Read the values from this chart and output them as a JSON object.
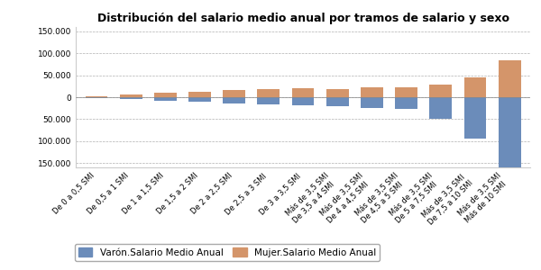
{
  "title": "Distribución del salario medio anual por tramos de salario y sexo",
  "categories": [
    "De 0 a 0,5 SMI",
    "De 0,5 a 1 SMI",
    "De 1 a 1,5 SMI",
    "De 1,5 a 2 SMI",
    "De 2 a 2,5 SMI",
    "De 2,5 a 3 SMI",
    "De 3 a 3,5 SMI",
    "Más de 3,5 SMI\nDe 3,5 a 4 SMI",
    "Más de 3,5 SMI\nDe 4 a 4,5 SMI",
    "Más de 3,5 SMI\nDe 4,5 a 5 SMI",
    "Más de 3,5 SMI\nDe 5 a 7,5 SMI",
    "Más de 3,5 SMI\nDe 7,5 a 10 SMI",
    "Más de 3,5 SMI\nMás de 10 SMI"
  ],
  "varon": [
    -1500,
    -5000,
    -8000,
    -11000,
    -14000,
    -17000,
    -19000,
    -21000,
    -24000,
    -26000,
    -50000,
    -95000,
    -175000
  ],
  "mujer": [
    1500,
    6000,
    10000,
    13000,
    16000,
    19000,
    20000,
    19000,
    22000,
    23000,
    28000,
    45000,
    85000
  ],
  "varon_color": "#6b8cba",
  "mujer_color": "#d4956a",
  "legend_varon": "Varón.Salario Medio Anual",
  "legend_mujer": "Mujer.Salario Medio Anual",
  "ylim_min": -160000,
  "ylim_max": 160000,
  "yticks": [
    -150000,
    -100000,
    -50000,
    0,
    50000,
    100000,
    150000
  ],
  "ytick_labels": [
    "150.000",
    "100.000",
    "50.000",
    "0",
    "50.000",
    "100.000",
    "150.000"
  ],
  "bg_color": "#ffffff",
  "plot_bg_color": "#ffffff",
  "grid_color": "#b0b0b0",
  "title_fontsize": 9,
  "tick_fontsize": 6.5,
  "legend_fontsize": 7.5
}
